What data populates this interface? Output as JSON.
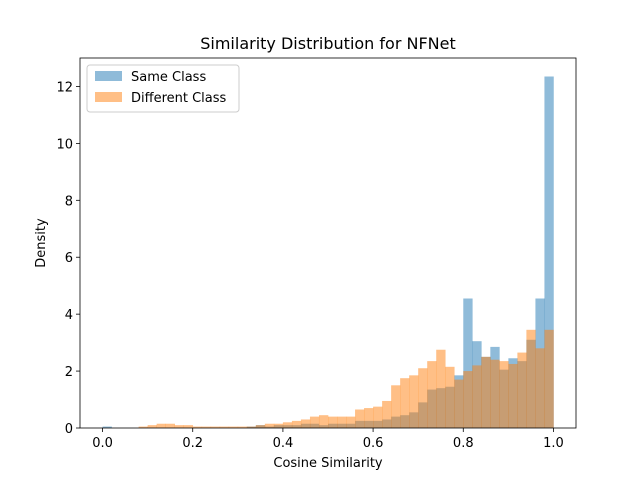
{
  "chart_data": {
    "type": "bar",
    "title": "Similarity Distribution for NFNet",
    "xlabel": "Cosine Similarity",
    "ylabel": "Density",
    "xlim": [
      -0.05,
      1.05
    ],
    "ylim": [
      0,
      13
    ],
    "xticks": [
      0.0,
      0.2,
      0.4,
      0.6,
      0.8,
      1.0
    ],
    "xtick_labels": [
      "0.0",
      "0.2",
      "0.4",
      "0.6",
      "0.8",
      "1.0"
    ],
    "yticks": [
      0,
      2,
      4,
      6,
      8,
      10,
      12
    ],
    "ytick_labels": [
      "0",
      "2",
      "4",
      "6",
      "8",
      "10",
      "12"
    ],
    "grid": false,
    "legend_position": "top-left",
    "bin_edges_start": 0.0,
    "bin_width": 0.02,
    "series": [
      {
        "name": "Same Class",
        "color": "#1f77b4",
        "alpha": 0.5,
        "values": [
          0.05,
          0,
          0,
          0,
          0,
          0,
          0,
          0,
          0,
          0,
          0,
          0,
          0,
          0,
          0,
          0,
          0.05,
          0.1,
          0.05,
          0.1,
          0.1,
          0.1,
          0.15,
          0.15,
          0.1,
          0.15,
          0.15,
          0.15,
          0.25,
          0.25,
          0.25,
          0.3,
          0.4,
          0.45,
          0.55,
          0.9,
          1.35,
          1.4,
          1.45,
          1.85,
          4.55,
          3.05,
          2.5,
          2.85,
          2.05,
          2.45,
          2.35,
          3.1,
          4.55,
          12.35
        ]
      },
      {
        "name": "Different Class",
        "color": "#ff7f0e",
        "alpha": 0.5,
        "values": [
          0,
          0,
          0,
          0,
          0.05,
          0.1,
          0.15,
          0.15,
          0.1,
          0.1,
          0.05,
          0.05,
          0.05,
          0.05,
          0.05,
          0.05,
          0.05,
          0.1,
          0.15,
          0.15,
          0.2,
          0.25,
          0.3,
          0.4,
          0.45,
          0.4,
          0.4,
          0.4,
          0.65,
          0.7,
          0.75,
          0.95,
          1.5,
          1.75,
          1.85,
          2.1,
          2.35,
          2.75,
          2.15,
          1.7,
          2.0,
          2.2,
          2.5,
          2.4,
          2.35,
          2.25,
          2.65,
          3.45,
          2.8,
          3.45
        ]
      }
    ]
  }
}
